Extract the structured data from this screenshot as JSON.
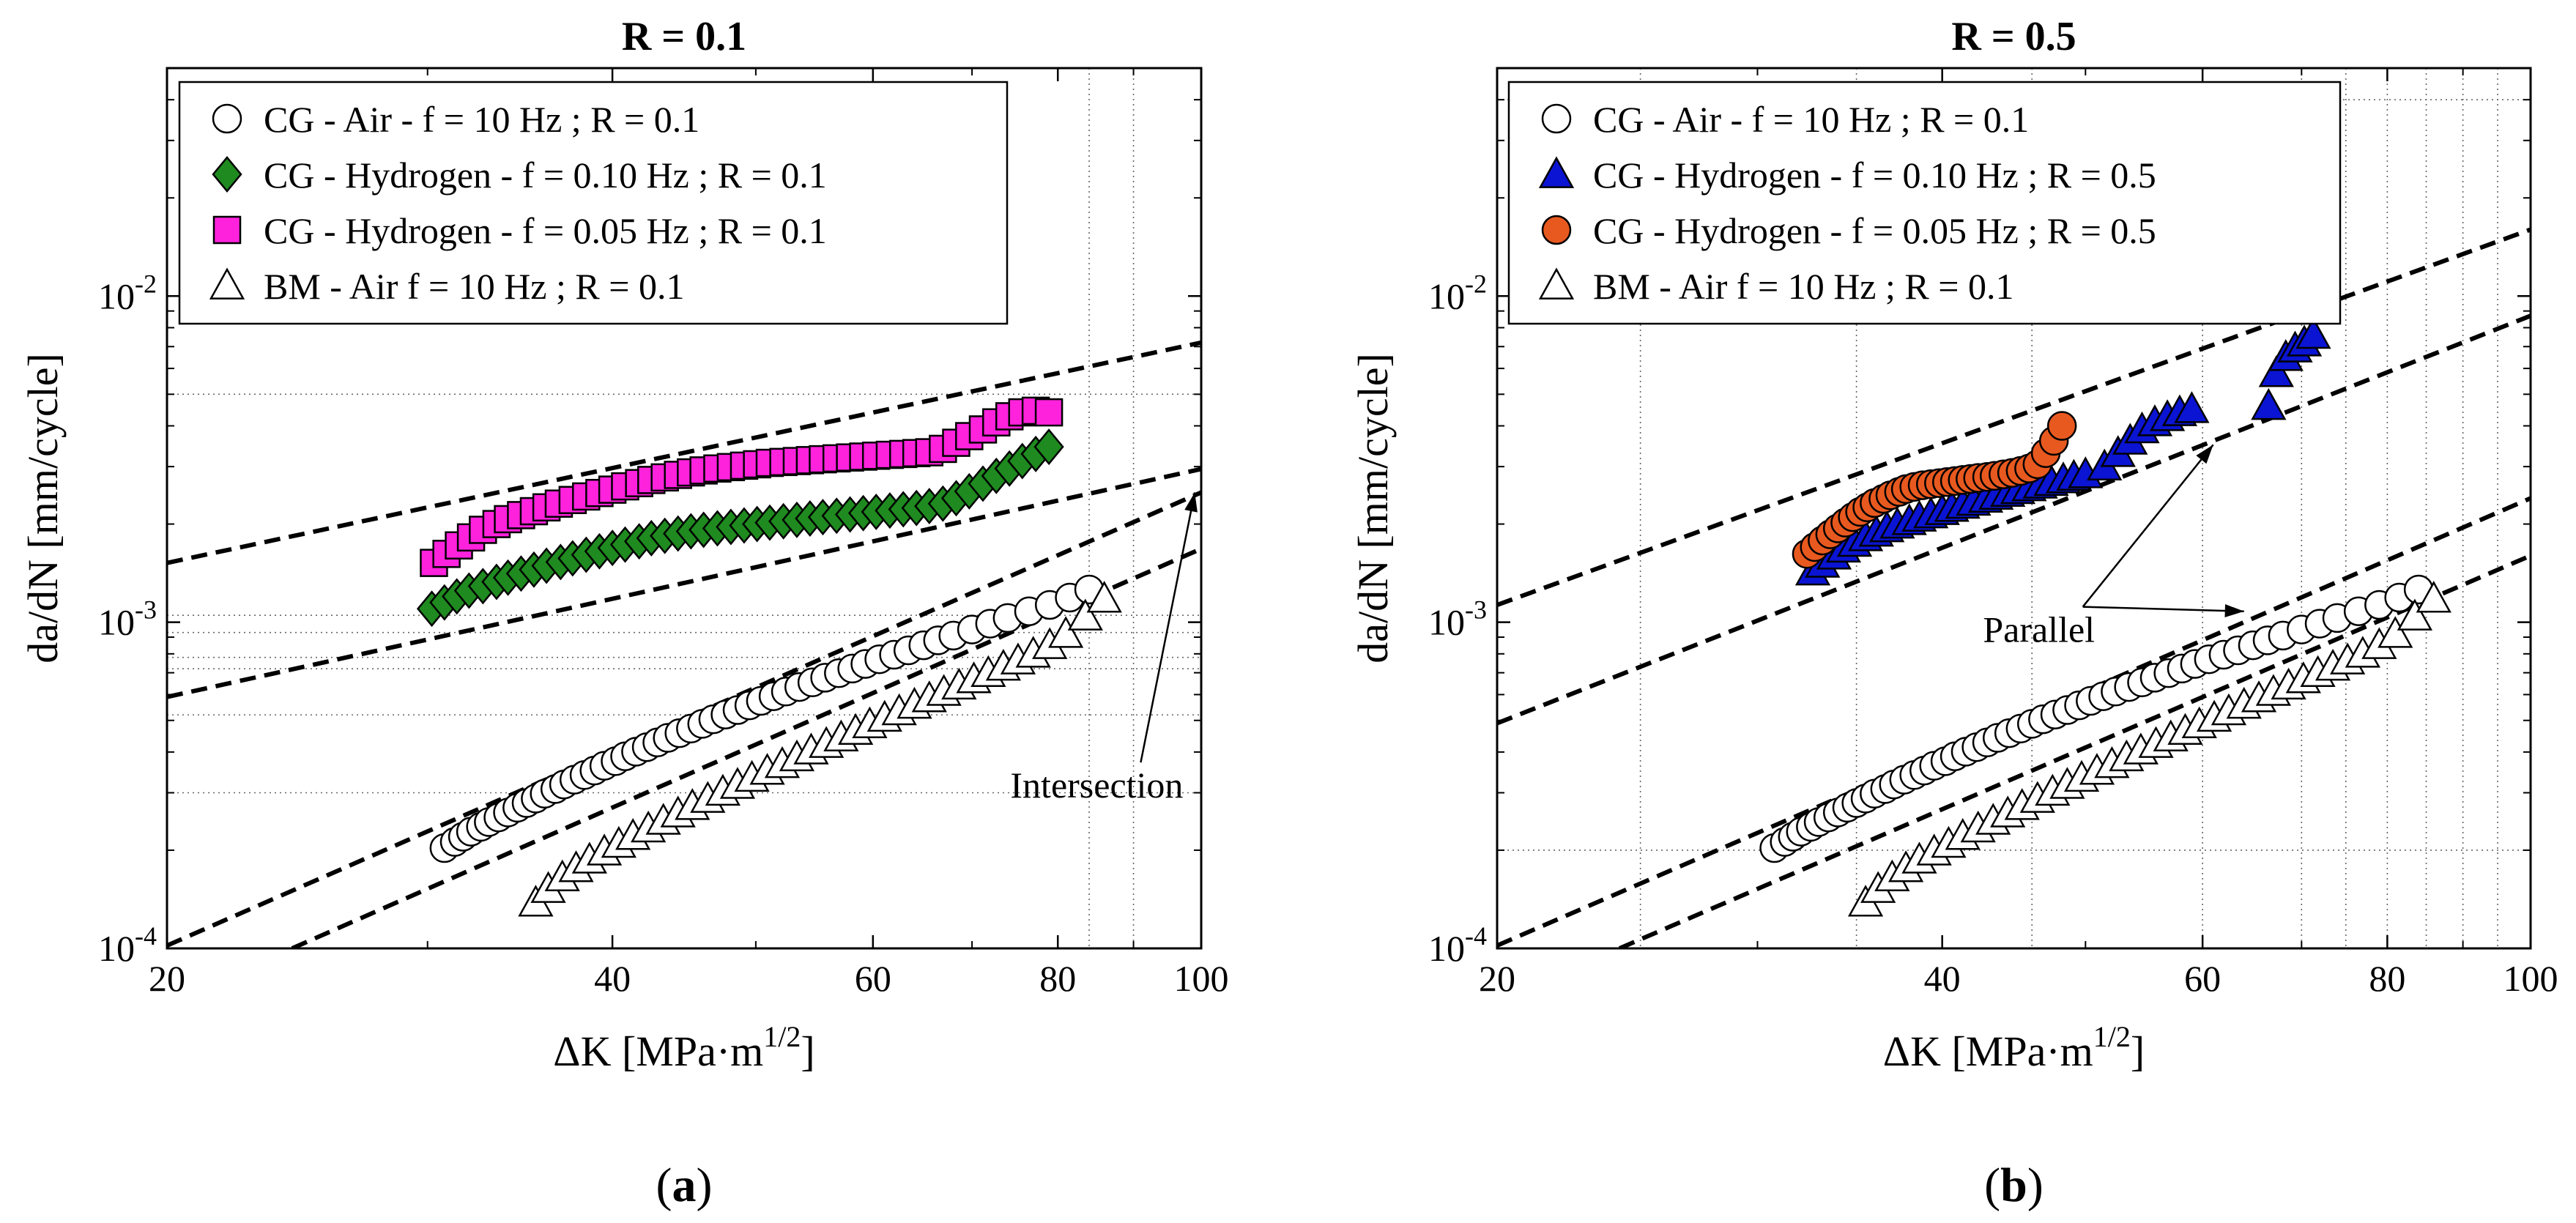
{
  "chart_data": [
    {
      "type": "scatter",
      "scale": "log-log",
      "panel_label": "a",
      "title": "R = 0.1",
      "xlabel_main": "ΔK [MPa·m",
      "xlabel_sup": "1/2",
      "xlabel_end": "]",
      "ylabel": "da/dN [mm/cycle]",
      "xlim": [
        20,
        100
      ],
      "ylim": [
        0.0001,
        0.05
      ],
      "xticks": [
        20,
        40,
        60,
        80,
        100
      ],
      "xtick_labels": [
        "20",
        "40",
        "60",
        "80",
        "100"
      ],
      "yticks": [
        0.0001,
        0.001,
        0.01
      ],
      "ytick_labels": [
        {
          "base": "10",
          "exp": "-4"
        },
        {
          "base": "10",
          "exp": "-3"
        },
        {
          "base": "10",
          "exp": "-2"
        }
      ],
      "grid_x": [
        84,
        90
      ],
      "grid_y": [
        0.005,
        0.00105,
        0.00093,
        0.00078,
        0.00072,
        0.00052,
        0.0003
      ],
      "legend_position": "top-left",
      "annotations": [
        {
          "text": "Intersection",
          "x": 85,
          "y": 0.00029,
          "arrows_to": [
            [
              99,
              0.0025
            ]
          ]
        }
      ],
      "fit_lines": [
        {
          "x": [
            20,
            100
          ],
          "y": [
            0.00152,
            0.0072
          ]
        },
        {
          "x": [
            20,
            100
          ],
          "y": [
            0.00059,
            0.00295
          ]
        },
        {
          "x": [
            20,
            100
          ],
          "y": [
            0.000102,
            0.0025
          ]
        },
        {
          "x": [
            24.3,
            100
          ],
          "y": [
            0.0001,
            0.00168
          ]
        }
      ],
      "series": [
        {
          "name": "CG - Air - f = 10 Hz ; R = 0.1",
          "marker": "circle",
          "fill": "#ffffff",
          "stroke": "#000000",
          "x": [
            30.8,
            31.3,
            31.7,
            32.1,
            32.6,
            33.0,
            33.5,
            34.0,
            34.5,
            35.0,
            35.5,
            36.0,
            36.6,
            37.1,
            37.7,
            38.3,
            38.9,
            39.5,
            40.2,
            40.8,
            41.5,
            42.2,
            42.9,
            43.6,
            44.4,
            45.2,
            46.0,
            46.8,
            47.7,
            48.6,
            49.5,
            50.4,
            51.4,
            52.4,
            53.5,
            54.6,
            55.7,
            56.9,
            58.1,
            59.3,
            60.6,
            62.0,
            63.4,
            64.9,
            66.4,
            68.0,
            70.0,
            72.0,
            74.0,
            76.5,
            79.0,
            81.5,
            84.0
          ],
          "y": [
            0.000203,
            0.000212,
            0.00022,
            0.000228,
            0.000236,
            0.000244,
            0.000252,
            0.000261,
            0.00027,
            0.000279,
            0.000288,
            0.000298,
            0.000308,
            0.000318,
            0.000329,
            0.00034,
            0.000351,
            0.000363,
            0.000375,
            0.000388,
            0.000401,
            0.000414,
            0.000428,
            0.000442,
            0.000457,
            0.000472,
            0.000488,
            0.000504,
            0.000521,
            0.000538,
            0.000556,
            0.000574,
            0.000593,
            0.000613,
            0.000633,
            0.000654,
            0.000676,
            0.000698,
            0.000721,
            0.000745,
            0.00077,
            0.000795,
            0.00082,
            0.00085,
            0.00088,
            0.00091,
            0.00095,
            0.00099,
            0.00103,
            0.00108,
            0.00113,
            0.00119,
            0.00126
          ]
        },
        {
          "name": "CG - Hydrogen - f = 0.10 Hz ; R = 0.1",
          "marker": "diamond",
          "fill": "#1f8a1f",
          "stroke": "#000000",
          "x": [
            30.2,
            30.8,
            31.4,
            32.0,
            32.7,
            33.4,
            34.0,
            34.7,
            35.4,
            36.1,
            36.9,
            37.6,
            38.4,
            39.2,
            40.0,
            40.8,
            41.7,
            42.5,
            43.4,
            44.3,
            45.2,
            46.1,
            47.1,
            48.1,
            49.1,
            50.1,
            51.1,
            52.2,
            53.3,
            54.4,
            55.5,
            56.7,
            57.9,
            59.1,
            60.3,
            61.6,
            62.9,
            64.2,
            65.5,
            66.9,
            68.3,
            69.7,
            71.2,
            72.7,
            74.2,
            75.7,
            77.3,
            78.9
          ],
          "y": [
            0.0011,
            0.00115,
            0.0012,
            0.00125,
            0.00129,
            0.00133,
            0.00137,
            0.00141,
            0.00145,
            0.00149,
            0.00153,
            0.00157,
            0.00161,
            0.00165,
            0.00169,
            0.00173,
            0.00177,
            0.00181,
            0.00184,
            0.00187,
            0.0019,
            0.00192,
            0.00194,
            0.00196,
            0.00198,
            0.002,
            0.00202,
            0.00204,
            0.00206,
            0.00208,
            0.0021,
            0.00212,
            0.00214,
            0.00216,
            0.00218,
            0.0022,
            0.00222,
            0.00224,
            0.00227,
            0.00231,
            0.0024,
            0.00252,
            0.00266,
            0.00281,
            0.00296,
            0.00312,
            0.00328,
            0.00345
          ]
        },
        {
          "name": "CG - Hydrogen - f = 0.05 Hz ; R = 0.1",
          "marker": "square",
          "fill": "#ff22dd",
          "stroke": "#000000",
          "x": [
            30.3,
            30.9,
            31.5,
            32.1,
            32.7,
            33.4,
            34.0,
            34.7,
            35.4,
            36.1,
            36.8,
            37.6,
            38.4,
            39.2,
            40.0,
            40.8,
            41.7,
            42.5,
            43.4,
            44.3,
            45.2,
            46.1,
            47.1,
            48.1,
            49.1,
            50.1,
            51.1,
            52.2,
            53.3,
            54.4,
            55.5,
            56.7,
            57.9,
            59.1,
            60.3,
            61.6,
            62.9,
            64.2,
            65.5,
            66.9,
            68.3,
            69.7,
            71.2,
            72.7,
            74.2,
            75.7,
            77.3,
            78.9
          ],
          "y": [
            0.00152,
            0.00162,
            0.00172,
            0.00182,
            0.00192,
            0.002,
            0.00207,
            0.00213,
            0.00219,
            0.00225,
            0.00231,
            0.00237,
            0.00243,
            0.00249,
            0.00255,
            0.00261,
            0.00267,
            0.00273,
            0.00278,
            0.00283,
            0.00288,
            0.00292,
            0.00296,
            0.00299,
            0.00302,
            0.00305,
            0.00308,
            0.0031,
            0.00312,
            0.00314,
            0.00316,
            0.00318,
            0.0032,
            0.00322,
            0.00324,
            0.00326,
            0.00328,
            0.0033,
            0.00332,
            0.0034,
            0.00355,
            0.00372,
            0.0039,
            0.0041,
            0.00428,
            0.0044,
            0.00445,
            0.0044
          ]
        },
        {
          "name": "BM - Air f = 10 Hz ; R = 0.1",
          "marker": "triangle",
          "fill": "#ffffff",
          "stroke": "#000000",
          "x": [
            35.5,
            36.2,
            37.0,
            37.8,
            38.6,
            39.5,
            40.4,
            41.3,
            42.3,
            43.3,
            44.3,
            45.3,
            46.4,
            47.5,
            48.6,
            49.7,
            50.9,
            52.1,
            53.3,
            54.5,
            55.8,
            57.1,
            58.4,
            59.7,
            61.1,
            62.5,
            64.0,
            65.5,
            67.0,
            68.6,
            70.2,
            71.8,
            73.5,
            75.2,
            77.0,
            79.0,
            81.0,
            83.5,
            86.0
          ],
          "y": [
            0.000138,
            0.000152,
            0.000165,
            0.000176,
            0.000187,
            0.000198,
            0.000209,
            0.000221,
            0.000233,
            0.000246,
            0.000259,
            0.000273,
            0.000287,
            0.000302,
            0.000317,
            0.000333,
            0.00035,
            0.000367,
            0.000385,
            0.000404,
            0.000423,
            0.000443,
            0.000464,
            0.000486,
            0.000509,
            0.000533,
            0.000558,
            0.000584,
            0.000611,
            0.000639,
            0.000668,
            0.000698,
            0.00073,
            0.000763,
            0.0008,
            0.00085,
            0.00092,
            0.00104,
            0.00118
          ]
        }
      ]
    },
    {
      "type": "scatter",
      "scale": "log-log",
      "panel_label": "b",
      "title": "R = 0.5",
      "xlabel_main": "ΔK [MPa·m",
      "xlabel_sup": "1/2",
      "xlabel_end": "]",
      "ylabel": "da/dN [mm/cycle]",
      "xlim": [
        20,
        100
      ],
      "ylim": [
        0.0001,
        0.05
      ],
      "xticks": [
        20,
        40,
        60,
        80,
        100
      ],
      "xtick_labels": [
        "20",
        "40",
        "60",
        "80",
        "100"
      ],
      "yticks": [
        0.0001,
        0.001,
        0.01
      ],
      "ytick_labels": [
        {
          "base": "10",
          "exp": "-4"
        },
        {
          "base": "10",
          "exp": "-3"
        },
        {
          "base": "10",
          "exp": "-2"
        }
      ],
      "grid_x": [
        25,
        35,
        46,
        60,
        70,
        75,
        80,
        85,
        90,
        95
      ],
      "grid_y": [
        0.04,
        0.0002
      ],
      "legend_position": "top-left",
      "annotations": [
        {
          "text": "Parallel",
          "x": 46.5,
          "y": 0.00087,
          "arrows_to": [
            [
              61,
              0.0035
            ],
            [
              64,
              0.00108
            ]
          ]
        }
      ],
      "fit_lines": [
        {
          "x": [
            20,
            100
          ],
          "y": [
            0.00113,
            0.016
          ]
        },
        {
          "x": [
            20,
            100
          ],
          "y": [
            0.00049,
            0.0087
          ]
        },
        {
          "x": [
            20,
            100
          ],
          "y": [
            0.000102,
            0.0024
          ]
        },
        {
          "x": [
            24.2,
            100
          ],
          "y": [
            0.0001,
            0.0016
          ]
        }
      ],
      "series": [
        {
          "name": "CG - Air - f = 10 Hz ; R = 0.1",
          "marker": "circle",
          "fill": "#ffffff",
          "stroke": "#000000",
          "x": [
            30.8,
            31.3,
            31.7,
            32.1,
            32.6,
            33.0,
            33.5,
            34.0,
            34.5,
            35.0,
            35.5,
            36.0,
            36.6,
            37.1,
            37.7,
            38.3,
            38.9,
            39.5,
            40.2,
            40.8,
            41.5,
            42.2,
            42.9,
            43.6,
            44.4,
            45.2,
            46.0,
            46.8,
            47.7,
            48.6,
            49.5,
            50.4,
            51.4,
            52.4,
            53.5,
            54.6,
            55.7,
            56.9,
            58.1,
            59.3,
            60.6,
            62.0,
            63.4,
            64.9,
            66.4,
            68.0,
            70.0,
            72.0,
            74.0,
            76.5,
            79.0,
            81.5,
            84.0
          ],
          "y": [
            0.000203,
            0.000212,
            0.00022,
            0.000228,
            0.000236,
            0.000244,
            0.000252,
            0.000261,
            0.00027,
            0.000279,
            0.000288,
            0.000298,
            0.000308,
            0.000318,
            0.000329,
            0.00034,
            0.000351,
            0.000363,
            0.000375,
            0.000388,
            0.000401,
            0.000414,
            0.000428,
            0.000442,
            0.000457,
            0.000472,
            0.000488,
            0.000504,
            0.000521,
            0.000538,
            0.000556,
            0.000574,
            0.000593,
            0.000613,
            0.000633,
            0.000654,
            0.000676,
            0.000698,
            0.000721,
            0.000745,
            0.00077,
            0.000795,
            0.00082,
            0.00085,
            0.00088,
            0.00091,
            0.00095,
            0.00099,
            0.00103,
            0.00108,
            0.00113,
            0.00119,
            0.00126
          ]
        },
        {
          "name": "CG - Hydrogen - f = 0.10 Hz ; R = 0.5",
          "marker": "triangle",
          "fill": "#0a14d2",
          "stroke": "#000000",
          "x": [
            32.7,
            33.2,
            33.8,
            34.3,
            34.9,
            35.5,
            36.1,
            36.7,
            37.3,
            38.0,
            38.6,
            39.3,
            40.0,
            40.6,
            41.3,
            42.0,
            42.8,
            43.5,
            44.3,
            45.0,
            45.8,
            46.6,
            47.4,
            48.3,
            49.1,
            50.0,
            51.5,
            52.6,
            53.6,
            54.6,
            55.7,
            56.8,
            57.9,
            59.0,
            66.5,
            67.3,
            68.3,
            69.3,
            70.3,
            71.3
          ],
          "y": [
            0.00143,
            0.00151,
            0.0016,
            0.00168,
            0.00175,
            0.00182,
            0.00188,
            0.00194,
            0.00199,
            0.00204,
            0.00209,
            0.00214,
            0.00219,
            0.00224,
            0.00229,
            0.00234,
            0.00239,
            0.00244,
            0.00249,
            0.00254,
            0.00259,
            0.00264,
            0.00269,
            0.00274,
            0.00279,
            0.00284,
            0.003,
            0.0033,
            0.0036,
            0.0039,
            0.0041,
            0.00425,
            0.0044,
            0.0045,
            0.0046,
            0.0058,
            0.0065,
            0.0069,
            0.0072,
            0.0076
          ]
        },
        {
          "name": "CG - Hydrogen - f = 0.05 Hz ; R = 0.5",
          "marker": "circle",
          "fill": "#e8591f",
          "stroke": "#000000",
          "x": [
            32.4,
            32.8,
            33.2,
            33.6,
            34.0,
            34.4,
            34.8,
            35.2,
            35.6,
            36.0,
            36.5,
            36.9,
            37.4,
            37.8,
            38.3,
            38.8,
            39.3,
            39.8,
            40.3,
            40.8,
            41.3,
            41.8,
            42.3,
            42.9,
            43.4,
            44.0,
            44.6,
            45.2,
            45.8,
            46.4,
            47.0,
            47.6,
            48.2
          ],
          "y": [
            0.00162,
            0.0017,
            0.00178,
            0.00186,
            0.00194,
            0.00202,
            0.0021,
            0.00218,
            0.00225,
            0.00232,
            0.00239,
            0.00245,
            0.00251,
            0.00256,
            0.0026,
            0.00263,
            0.00265,
            0.00267,
            0.00269,
            0.00271,
            0.00273,
            0.00275,
            0.00277,
            0.00279,
            0.00281,
            0.00284,
            0.00287,
            0.00291,
            0.00296,
            0.00305,
            0.0033,
            0.0036,
            0.004
          ]
        },
        {
          "name": "BM - Air f = 10 Hz ; R = 0.1",
          "marker": "triangle",
          "fill": "#ffffff",
          "stroke": "#000000",
          "x": [
            35.5,
            36.2,
            37.0,
            37.8,
            38.6,
            39.5,
            40.4,
            41.3,
            42.3,
            43.3,
            44.3,
            45.3,
            46.4,
            47.5,
            48.6,
            49.7,
            50.9,
            52.1,
            53.3,
            54.5,
            55.8,
            57.1,
            58.4,
            59.7,
            61.1,
            62.5,
            64.0,
            65.5,
            67.0,
            68.6,
            70.2,
            71.8,
            73.5,
            75.2,
            77.0,
            79.0,
            81.0,
            83.5,
            86.0
          ],
          "y": [
            0.000138,
            0.000152,
            0.000165,
            0.000176,
            0.000187,
            0.000198,
            0.000209,
            0.000221,
            0.000233,
            0.000246,
            0.000259,
            0.000273,
            0.000287,
            0.000302,
            0.000317,
            0.000333,
            0.00035,
            0.000367,
            0.000385,
            0.000404,
            0.000423,
            0.000443,
            0.000464,
            0.000486,
            0.000509,
            0.000533,
            0.000558,
            0.000584,
            0.000611,
            0.000639,
            0.000668,
            0.000698,
            0.00073,
            0.000763,
            0.0008,
            0.00085,
            0.00092,
            0.00104,
            0.00118
          ]
        }
      ]
    }
  ]
}
